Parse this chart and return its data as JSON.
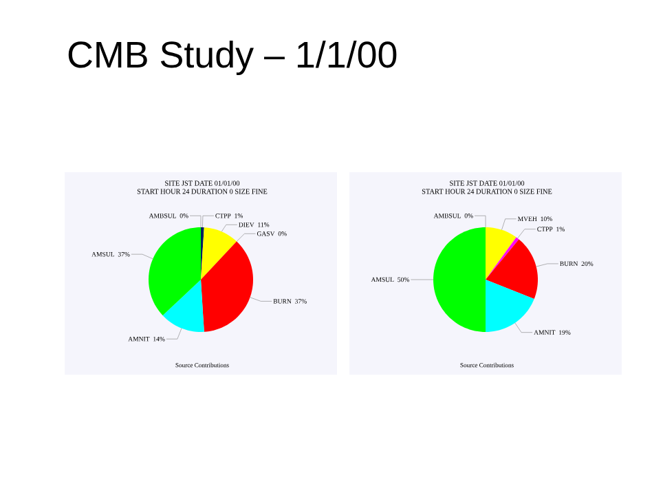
{
  "chart_data": [
    {
      "type": "other",
      "title": "CMB Study – 1/1/00"
    },
    {
      "type": "pie",
      "title": "SITE JST          DATE 01/01/00",
      "subtitle": "START HOUR 24  DURATION 0   SIZE FINE",
      "categories": [
        "AMBSUL",
        "CTPP",
        "DIEV",
        "GASV",
        "BURN",
        "AMNIT",
        "AMSUL"
      ],
      "values": [
        0,
        1,
        11,
        0,
        37,
        14,
        37
      ],
      "value_labels": [
        "0%",
        "1%",
        "11%",
        "0%",
        "37%",
        "14%",
        "37%"
      ],
      "colors": [
        "#ffffff",
        "#002060",
        "#ffff00",
        "#808080",
        "#ff0000",
        "#00ffff",
        "#00ff00"
      ],
      "annotations": [
        "Source Contributions"
      ]
    },
    {
      "type": "pie",
      "title": "SITE JST          DATE 01/01/00",
      "subtitle": "START HOUR 24  DURATION 0   SIZE FINE",
      "categories": [
        "AMBSUL",
        "MVEH",
        "CTPP",
        "BURN",
        "AMNIT",
        "AMSUL"
      ],
      "values": [
        0,
        10,
        1,
        20,
        19,
        50
      ],
      "value_labels": [
        "0%",
        "10%",
        "1%",
        "20%",
        "19%",
        "50%"
      ],
      "colors": [
        "#ffffff",
        "#ffff00",
        "#ff00ff",
        "#ff0000",
        "#00ffff",
        "#00ff00"
      ],
      "annotations": [
        "Source Contributions"
      ]
    }
  ]
}
